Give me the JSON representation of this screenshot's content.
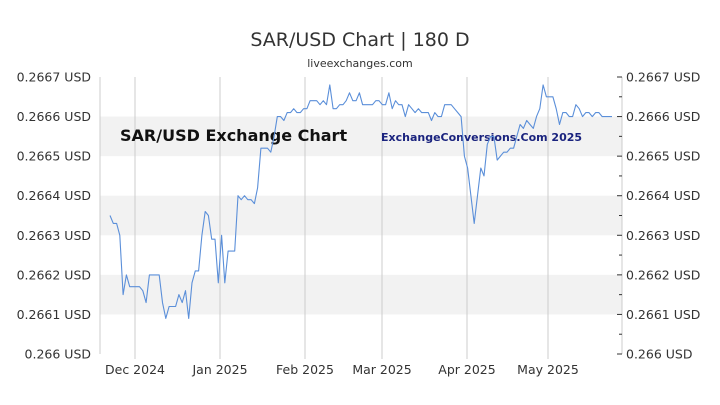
{
  "page": {
    "title": "SAR/USD Chart | 180 D",
    "subtitle": "liveexchanges.com"
  },
  "overlay": {
    "chart_label": "SAR/USD Exchange Chart",
    "credit": "ExchangeConversions.Com 2025"
  },
  "colors": {
    "line": "#5b8fd9",
    "band": "#f2f2f2",
    "grid": "#cccccc",
    "text": "#333333",
    "credit": "#1a237e"
  },
  "chart_data": {
    "type": "line",
    "title": "SAR/USD Chart | 180 D",
    "xlabel": "",
    "ylabel": "",
    "ylim": [
      0.266,
      0.2667
    ],
    "yticks": [
      "0.2667 USD",
      "0.2666 USD",
      "0.2665 USD",
      "0.2664 USD",
      "0.2663 USD",
      "0.2662 USD",
      "0.2661 USD",
      "0.266 USD"
    ],
    "xticks": [
      "Dec 2024",
      "Jan 2025",
      "Feb 2025",
      "Mar 2025",
      "Apr 2025",
      "May 2025"
    ],
    "grid": "vertical lines at month boundaries; alternating shaded horizontal bands",
    "series": [
      {
        "values": [
          0.26635,
          0.26633,
          0.26633,
          0.2663,
          0.26615,
          0.2662,
          0.26617,
          0.26617,
          0.26617,
          0.26617,
          0.26616,
          0.26613,
          0.2662,
          0.2662,
          0.2662,
          0.2662,
          0.26613,
          0.26609,
          0.26612,
          0.26612,
          0.26612,
          0.26615,
          0.26613,
          0.26616,
          0.26609,
          0.26618,
          0.26621,
          0.26621,
          0.2663,
          0.26636,
          0.26635,
          0.26629,
          0.26629,
          0.26618,
          0.2663,
          0.26618,
          0.26626,
          0.26626,
          0.26626,
          0.2664,
          0.26639,
          0.2664,
          0.26639,
          0.26639,
          0.26638,
          0.26642,
          0.26652,
          0.26652,
          0.26652,
          0.26651,
          0.26655,
          0.2666,
          0.2666,
          0.26659,
          0.26661,
          0.26661,
          0.26662,
          0.26661,
          0.26661,
          0.26662,
          0.26662,
          0.26664,
          0.26664,
          0.26664,
          0.26663,
          0.26664,
          0.26663,
          0.26668,
          0.26662,
          0.26662,
          0.26663,
          0.26663,
          0.26664,
          0.26666,
          0.26664,
          0.26664,
          0.26666,
          0.26663,
          0.26663,
          0.26663,
          0.26663,
          0.26664,
          0.26664,
          0.26663,
          0.26663,
          0.26666,
          0.26662,
          0.26664,
          0.26663,
          0.26663,
          0.2666,
          0.26663,
          0.26662,
          0.26661,
          0.26662,
          0.26661,
          0.26661,
          0.26661,
          0.26659,
          0.26661,
          0.2666,
          0.2666,
          0.26663,
          0.26663,
          0.26663,
          0.26662,
          0.26661,
          0.2666,
          0.2665,
          0.26647,
          0.2664,
          0.26633,
          0.2664,
          0.26647,
          0.26645,
          0.26653,
          0.26655,
          0.26655,
          0.26649,
          0.2665,
          0.26651,
          0.26651,
          0.26652,
          0.26652,
          0.26655,
          0.26658,
          0.26657,
          0.26659,
          0.26658,
          0.26657,
          0.2666,
          0.26662,
          0.26668,
          0.26665,
          0.26665,
          0.26665,
          0.26662,
          0.26658,
          0.26661,
          0.26661,
          0.2666,
          0.2666,
          0.26663,
          0.26662,
          0.2666,
          0.26661,
          0.26661,
          0.2666,
          0.26661,
          0.26661,
          0.2666,
          0.2666,
          0.2666,
          0.2666
        ]
      }
    ]
  }
}
